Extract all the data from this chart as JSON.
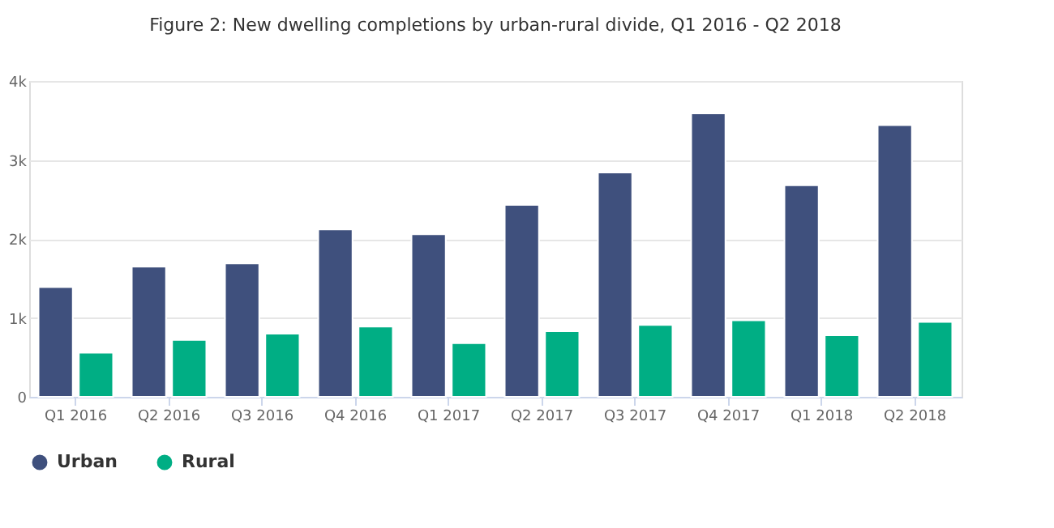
{
  "chart_data": {
    "type": "bar",
    "title": "Figure 2: New dwelling completions by urban-rural divide, Q1 2016 - Q2 2018",
    "categories": [
      "Q1 2016",
      "Q2 2016",
      "Q3 2016",
      "Q4 2016",
      "Q1 2017",
      "Q2 2017",
      "Q3 2017",
      "Q4 2017",
      "Q1 2018",
      "Q2 2018"
    ],
    "series": [
      {
        "name": "Urban",
        "color": "#3f507d",
        "values": [
          1390,
          1650,
          1690,
          2120,
          2060,
          2430,
          2840,
          3590,
          2680,
          3440
        ]
      },
      {
        "name": "Rural",
        "color": "#00ae84",
        "values": [
          560,
          720,
          800,
          890,
          680,
          830,
          910,
          970,
          780,
          950
        ]
      }
    ],
    "ylim": [
      0,
      4000
    ],
    "yticks": [
      0,
      {
        "value": 1000,
        "label": "1k"
      },
      {
        "value": 2000,
        "label": "2k"
      },
      {
        "value": 3000,
        "label": "3k"
      },
      {
        "value": 4000,
        "label": "4k"
      }
    ],
    "grid": "y",
    "legend": "bottom"
  }
}
